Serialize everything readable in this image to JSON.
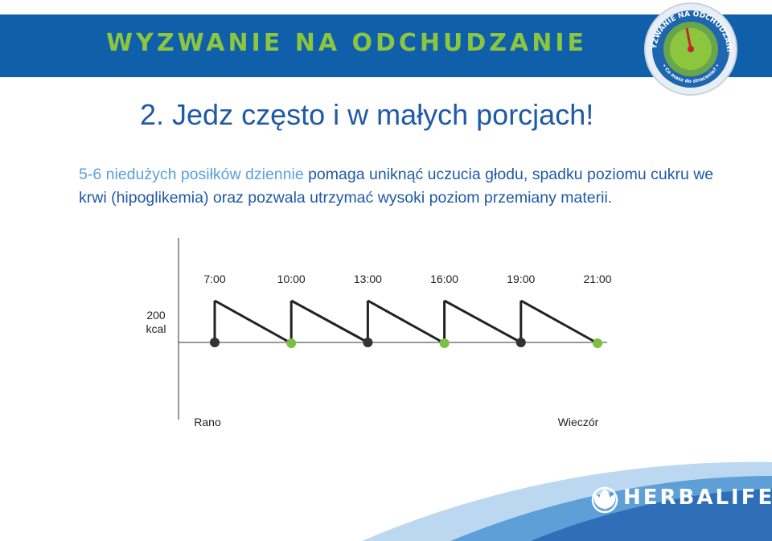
{
  "header": {
    "title": "WYZWANIE NA ODCHUDZANIE"
  },
  "badge": {
    "top_text": "WYZWANIE NA ODCHUDZANIE",
    "bottom_text": "• Co masz do stracenia? •",
    "needle_color": "#c1272d"
  },
  "heading": "2. Jedz często i w małych porcjach!",
  "intro": {
    "highlight": "5-6 niedużych posiłków dziennie",
    "rest": " pomaga uniknąć uczucia głodu, spadku poziomu cukru we krwi (hipoglikemia) oraz pozwala utrzymać wysoki poziom przemiany materii."
  },
  "chart_data": {
    "type": "line",
    "x_ticks": [
      "7:00",
      "10:00",
      "13:00",
      "16:00",
      "19:00",
      "21:00"
    ],
    "y_label": "200\nkcal",
    "x_start_label": "Rano",
    "x_end_label": "Wieczór",
    "meals": [
      {
        "color": "#333333"
      },
      {
        "color": "#7ac143"
      },
      {
        "color": "#333333"
      },
      {
        "color": "#7ac143"
      },
      {
        "color": "#333333"
      },
      {
        "color": "#7ac143"
      }
    ],
    "line_color": "#222222"
  },
  "footer": {
    "brand": "HERBALIFE",
    "registered": "®"
  }
}
